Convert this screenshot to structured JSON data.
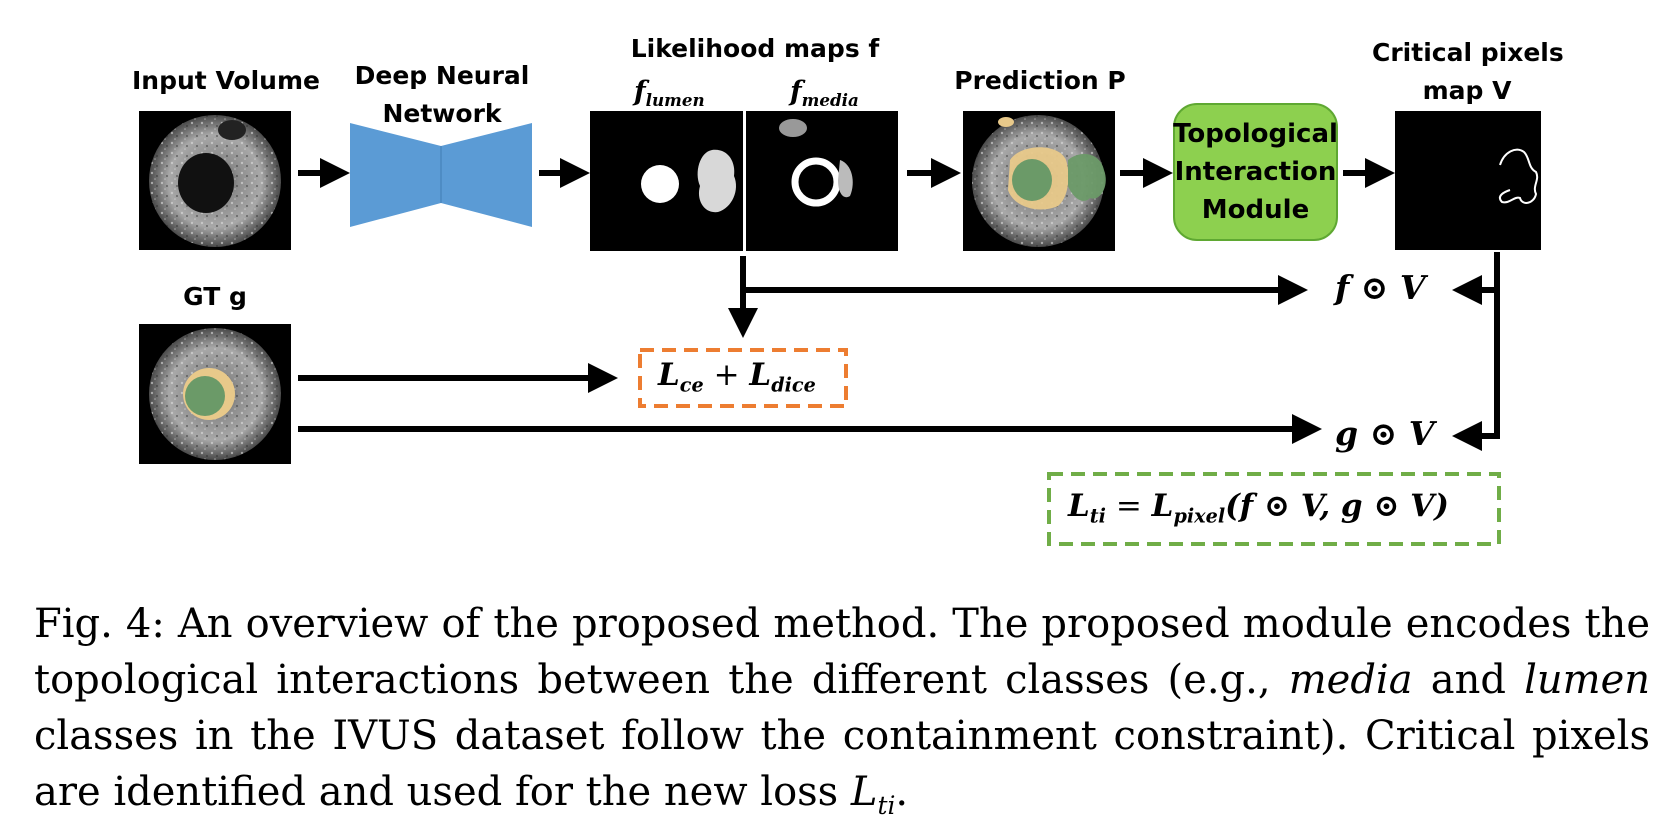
{
  "labels": {
    "input_volume": "Input Volume",
    "dnn_line1": "Deep Neural",
    "dnn_line2": "Network",
    "likelihood_maps": "Likelihood maps f",
    "f_lumen": "f",
    "f_lumen_sub": "lumen",
    "f_media": "f",
    "f_media_sub": "media",
    "prediction": "Prediction P",
    "tim_line1": "Topological",
    "tim_line2": "Interaction",
    "tim_line3": "Module",
    "critical_line1": "Critical pixels",
    "critical_line2": "map V",
    "gt": "GT g"
  },
  "math": {
    "f_dot_v": "f ⊙ V",
    "g_dot_v": "g ⊙ V",
    "l_ce": "L",
    "l_ce_sub": "ce",
    "plus": " + ",
    "l_dice": "L",
    "l_dice_sub": "dice",
    "l_ti": "L",
    "l_ti_sub": "ti",
    "equals": " = ",
    "l_pixel": "L",
    "l_pixel_sub": "pixel",
    "l_pixel_args": "(f ⊙ V, g ⊙ V)"
  },
  "caption": {
    "prefix": "Fig. 4: An overview of the proposed method. The proposed module encodes the topological interactions between the different classes (e.g., ",
    "media": "media",
    "and": " and ",
    "lumen": "lumen",
    "middle": " classes in the IVUS dataset follow the containment constraint). Critical pixels are identified and used for the new loss ",
    "loss": "L",
    "loss_sub": "ti",
    "suffix": "."
  },
  "colors": {
    "dnn_blue": "#5b9bd5",
    "tim_green": "#8dd04f",
    "lumen_green": "#6b9a68",
    "media_tan": "#e8c98a",
    "orange_dash": "#ed7d31",
    "green_dash": "#70ad47"
  }
}
